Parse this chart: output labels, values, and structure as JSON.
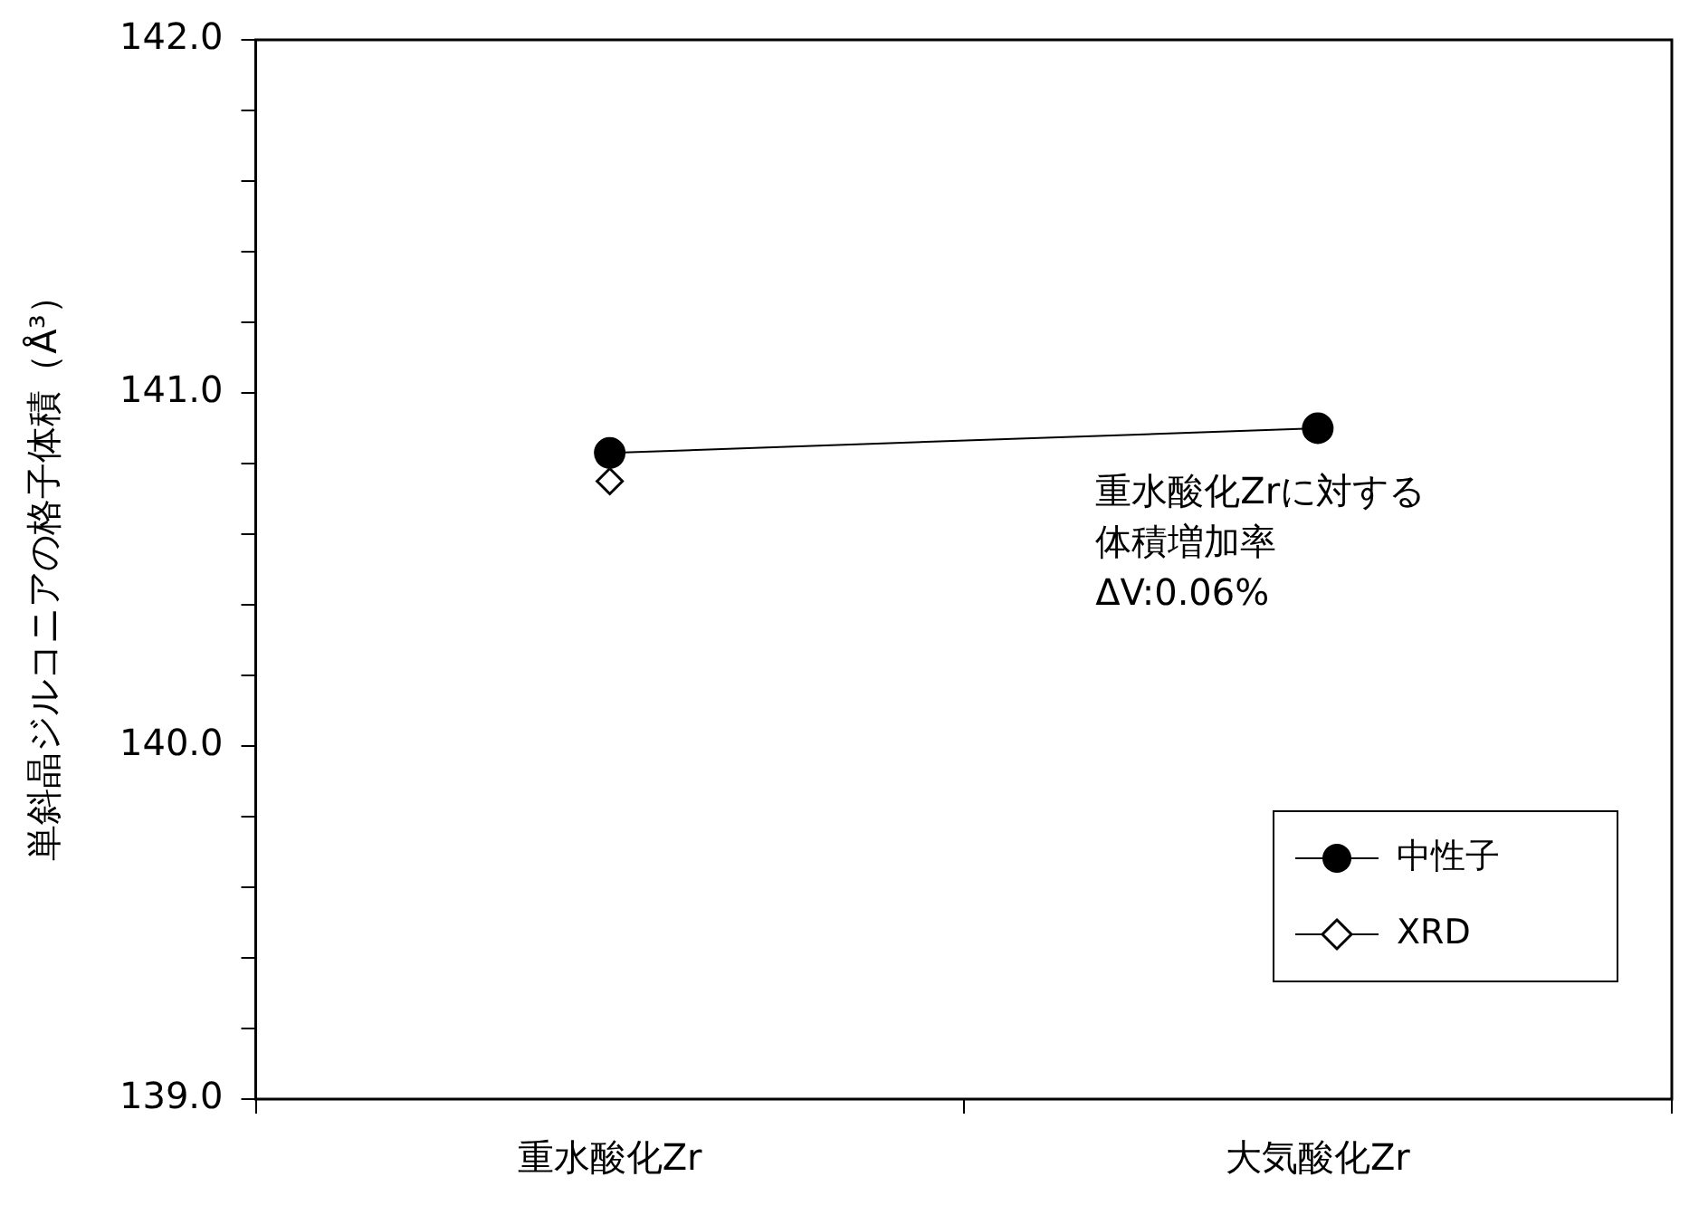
{
  "chart_data": {
    "type": "line",
    "ylabel": "単斜晶ジルコニアの格子体積（Å³）",
    "categories": [
      "重水酸化Zr",
      "大気酸化Zr"
    ],
    "series": [
      {
        "name": "中性子",
        "color": "#000000",
        "values": [
          140.83,
          140.9
        ],
        "marker": "circle",
        "line_style": "solid"
      },
      {
        "name": "XRD",
        "color": "#000000",
        "values": [
          140.75,
          null
        ],
        "marker": "diamond",
        "line_style": "solid"
      }
    ],
    "ylim": [
      139,
      142
    ],
    "yticks": [
      {
        "value": 139,
        "label": "139.0"
      },
      {
        "value": 139.2,
        "label": null
      },
      {
        "value": 139.4,
        "label": null
      },
      {
        "value": 139.6,
        "label": null
      },
      {
        "value": 139.8,
        "label": null
      },
      {
        "value": 140,
        "label": "140.0"
      },
      {
        "value": 140.2,
        "label": null
      },
      {
        "value": 140.4,
        "label": null
      },
      {
        "value": 140.6,
        "label": null
      },
      {
        "value": 140.8,
        "label": null
      },
      {
        "value": 141,
        "label": "141.0"
      },
      {
        "value": 141.2,
        "label": null
      },
      {
        "value": 141.4,
        "label": null
      },
      {
        "value": 141.6,
        "label": null
      },
      {
        "value": 141.8,
        "label": null
      },
      {
        "value": 142,
        "label": "142.0"
      }
    ],
    "annotations": [
      "重水酸化Zrに対する体積増加率",
      "ΔV:0.06%"
    ],
    "grid": false,
    "legend": "bottom right"
  }
}
